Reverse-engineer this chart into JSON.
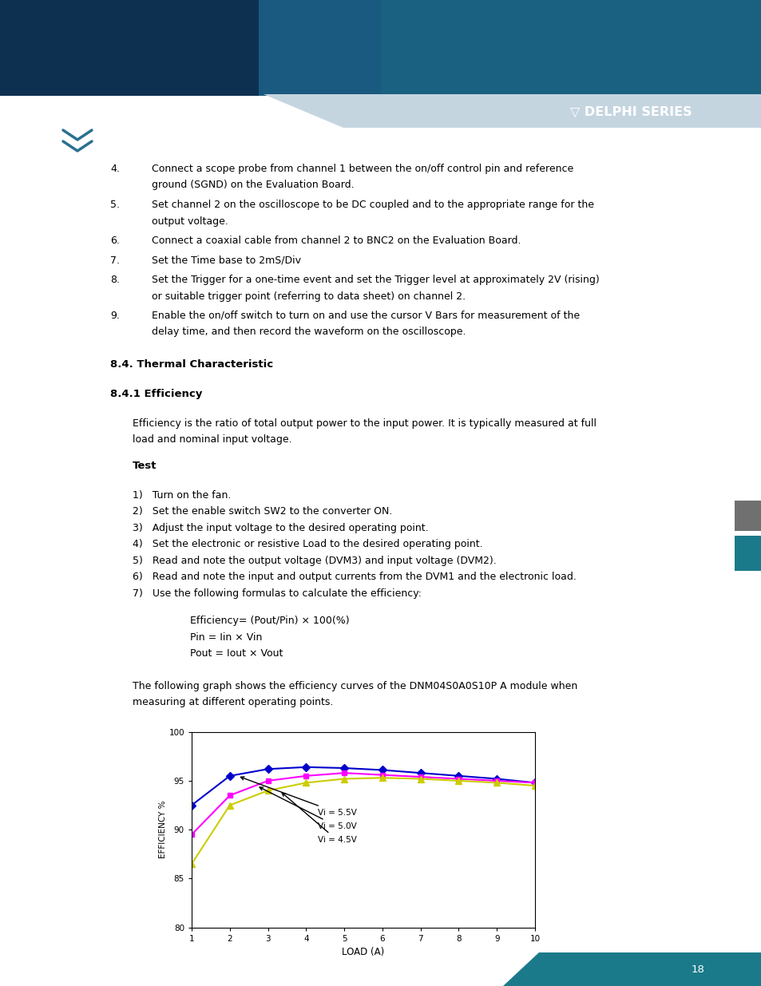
{
  "title": "",
  "xlabel": "LOAD (A)",
  "ylabel": "EFFICIENCY %",
  "xlim": [
    1,
    10
  ],
  "ylim": [
    80,
    100
  ],
  "xticks": [
    1,
    2,
    3,
    4,
    5,
    6,
    7,
    8,
    9,
    10
  ],
  "yticks": [
    80,
    85,
    90,
    95,
    100
  ],
  "series": [
    {
      "label": "Vi = 5.5V",
      "color": "#0000CC",
      "marker": "D",
      "markersize": 5,
      "x": [
        1,
        2,
        3,
        4,
        5,
        6,
        7,
        8,
        9,
        10
      ],
      "y": [
        92.5,
        95.5,
        96.2,
        96.4,
        96.3,
        96.1,
        95.8,
        95.5,
        95.2,
        94.8
      ]
    },
    {
      "label": "Vi = 5.0V",
      "color": "#FF00FF",
      "marker": "s",
      "markersize": 5,
      "x": [
        1,
        2,
        3,
        4,
        5,
        6,
        7,
        8,
        9,
        10
      ],
      "y": [
        89.5,
        93.5,
        95.0,
        95.5,
        95.8,
        95.6,
        95.4,
        95.2,
        95.0,
        94.8
      ]
    },
    {
      "label": "Vi = 4.5V",
      "color": "#CCCC00",
      "marker": "^",
      "markersize": 6,
      "x": [
        1,
        2,
        3,
        4,
        5,
        6,
        7,
        8,
        9,
        10
      ],
      "y": [
        86.5,
        92.5,
        94.0,
        94.8,
        95.2,
        95.3,
        95.2,
        95.0,
        94.8,
        94.5
      ]
    }
  ],
  "background_color": "#FFFFFF",
  "plot_bg_color": "#FFFFFF",
  "header_blue": "#1565a0",
  "header_dark": "#003060",
  "delphi_strip_color": "#b8ccd8",
  "teal_color": "#1a7a8a",
  "gray_rect_color": "#808080",
  "page_number": "18",
  "section_84": "8.4. Thermal Characteristic",
  "section_841": "8.4.1 Efficiency",
  "para_efficiency": "Efficiency is the ratio of total output power to the input power. It is typically measured at full\nload and nominal input voltage.",
  "test_heading": "Test",
  "test_items": [
    "1)   Turn on the fan.",
    "2)   Set the enable switch SW2 to the converter ON.",
    "3)   Adjust the input voltage to the desired operating point.",
    "4)   Set the electronic or resistive Load to the desired operating point.",
    "5)   Read and note the output voltage (DVM3) and input voltage (DVM2).",
    "6)   Read and note the input and output currents from the DVM1 and the electronic load.",
    "7)   Use the following formulas to calculate the efficiency:"
  ],
  "formulas": [
    "Efficiency= (Pout/Pin) × 100(%)",
    "Pin = Iin × Vin",
    "Pout = Iout × Vout"
  ],
  "graph_intro": "The following graph shows the efficiency curves of the DNM04S0A0S10P A module when\nmeasuring at different operating points.",
  "items_4_9": [
    {
      "num": "4.",
      "text": "Connect a scope probe from channel 1 between the on/off control pin and reference\nground (SGND) on the Evaluation Board."
    },
    {
      "num": "5.",
      "text": "Set channel 2 on the oscilloscope to be DC coupled and to the appropriate range for the\noutput voltage."
    },
    {
      "num": "6.",
      "text": "Connect a coaxial cable from channel 2 to BNC2 on the Evaluation Board."
    },
    {
      "num": "7.",
      "text": "Set the Time base to 2mS/Div"
    },
    {
      "num": "8.",
      "text": "Set the Trigger for a one-time event and set the Trigger level at approximately 2V (rising)\nor suitable trigger point (referring to data sheet) on channel 2."
    },
    {
      "num": "9.",
      "text": "Enable the on/off switch to turn on and use the cursor V Bars for measurement of the\ndelay time, and then record the waveform on the oscilloscope."
    }
  ]
}
